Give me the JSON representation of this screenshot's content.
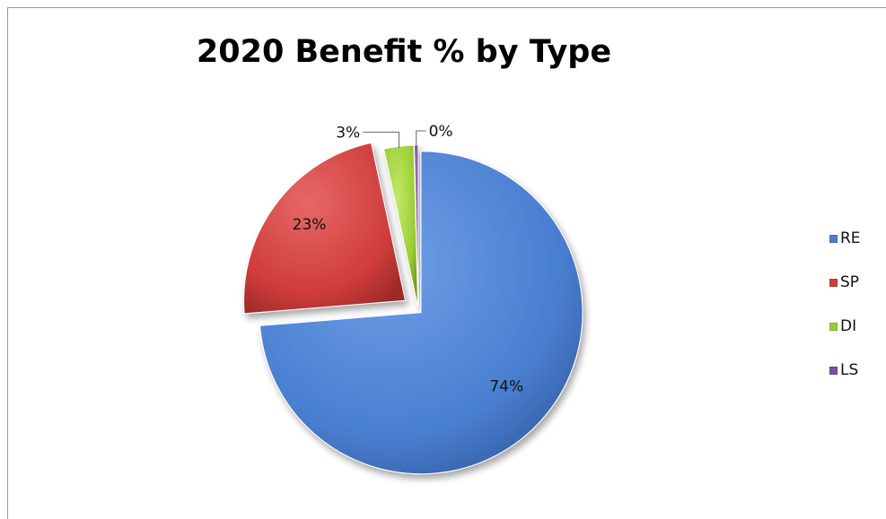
{
  "chart_data": {
    "type": "pie",
    "title": "2020 Benefit % by Type",
    "categories": [
      "RE",
      "SP",
      "DI",
      "LS"
    ],
    "values": [
      74,
      23,
      3,
      0.4
    ],
    "labels": [
      "74%",
      "23%",
      "3%",
      "0%"
    ],
    "colors": [
      "#4a7fd0",
      "#cf3d3b",
      "#9acd32",
      "#7b4fa0"
    ],
    "exploded": [
      "SP"
    ],
    "legend_position": "right"
  }
}
